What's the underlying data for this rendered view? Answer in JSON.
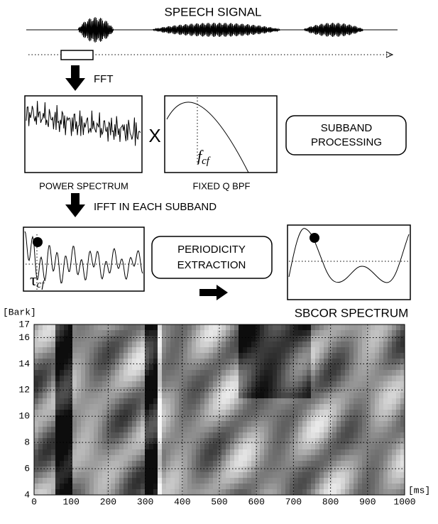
{
  "speech_signal": {
    "label": "SPEECH SIGNAL"
  },
  "fft": {
    "label": "FFT"
  },
  "power_spectrum": {
    "label": "POWER SPECTRUM"
  },
  "multiply": {
    "label": "X"
  },
  "bpf": {
    "label": "FIXED Q BPF",
    "center_symbol": "f",
    "center_subscript": "cf"
  },
  "subband_processing": {
    "lines": [
      "SUBBAND",
      "PROCESSING"
    ]
  },
  "ifft": {
    "label": "IFFT IN EACH SUBBAND"
  },
  "lag": {
    "symbol": "τ",
    "subscript": "cf"
  },
  "periodicity_extraction": {
    "lines": [
      "PERIODICITY",
      "EXTRACTION"
    ]
  },
  "sbcor": {
    "label": "SBCOR SPECTRUM"
  },
  "spectrogram": {
    "x_label": "[ms]",
    "y_label": "[Bark]",
    "xlim": [
      0,
      1000
    ],
    "ylim": [
      4,
      17
    ],
    "xticks": [
      0,
      100,
      200,
      300,
      400,
      500,
      600,
      700,
      800,
      900,
      1000
    ],
    "yticks": [
      4,
      6,
      8,
      10,
      12,
      14,
      16,
      17
    ]
  }
}
